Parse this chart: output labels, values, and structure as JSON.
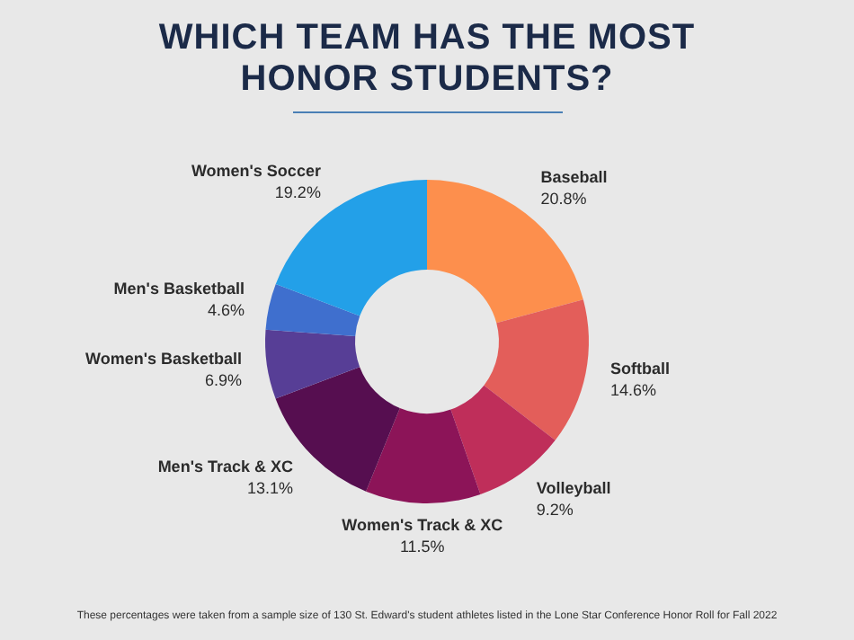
{
  "chart_data": {
    "type": "donut",
    "title": "WHICH TEAM HAS THE MOST HONOR STUDENTS?",
    "categories": [
      "Baseball",
      "Softball",
      "Volleyball",
      "Women's Track & XC",
      "Men's Track & XC",
      "Women's Basketball",
      "Men's Basketball",
      "Women's Soccer"
    ],
    "values": [
      20.8,
      14.6,
      9.2,
      11.5,
      13.1,
      6.9,
      4.6,
      19.2
    ],
    "colors": [
      "#fd8f4d",
      "#e35e5a",
      "#bf2e5a",
      "#8c1458",
      "#560e50",
      "#573e96",
      "#3f6fce",
      "#23a0e8"
    ],
    "value_labels": [
      "20.8%",
      "14.6%",
      "9.2%",
      "11.5%",
      "13.1%",
      "6.9%",
      "4.6%",
      "19.2%"
    ],
    "annotations": [
      "These percentages were taken from a sample size of 130 St. Edward's student athletes listed in the Lone Star Conference Honor Roll for Fall 2022"
    ]
  }
}
